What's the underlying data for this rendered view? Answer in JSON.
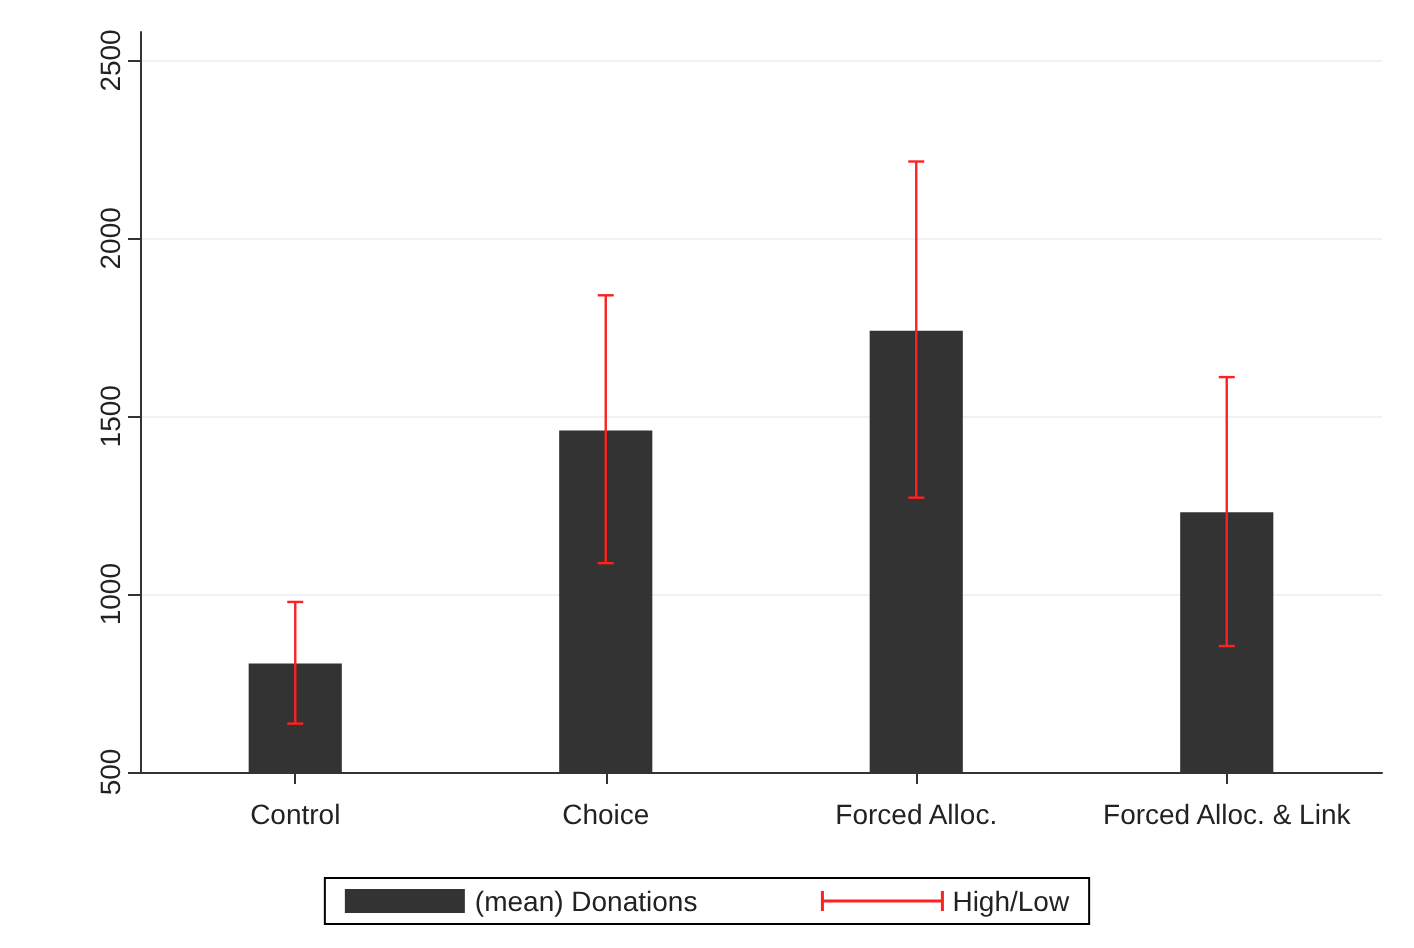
{
  "chart_data": {
    "type": "bar",
    "categories": [
      "Control",
      "Choice",
      "Forced Alloc.",
      "Forced Alloc. & Link"
    ],
    "series": [
      {
        "name": "(mean) Donations",
        "color": "#333333",
        "values": [
          805,
          1460,
          1740,
          1230
        ],
        "errors": [
          [
            636,
            978
          ],
          [
            1087,
            1840
          ],
          [
            1271,
            2216
          ],
          [
            854,
            1610
          ]
        ]
      }
    ],
    "annotations": [
      "High/Low"
    ],
    "ylim": [
      500,
      2580
    ],
    "yticks": [
      500,
      1000,
      1500,
      2000,
      2500
    ],
    "grid": "y",
    "legend": "bottom"
  }
}
